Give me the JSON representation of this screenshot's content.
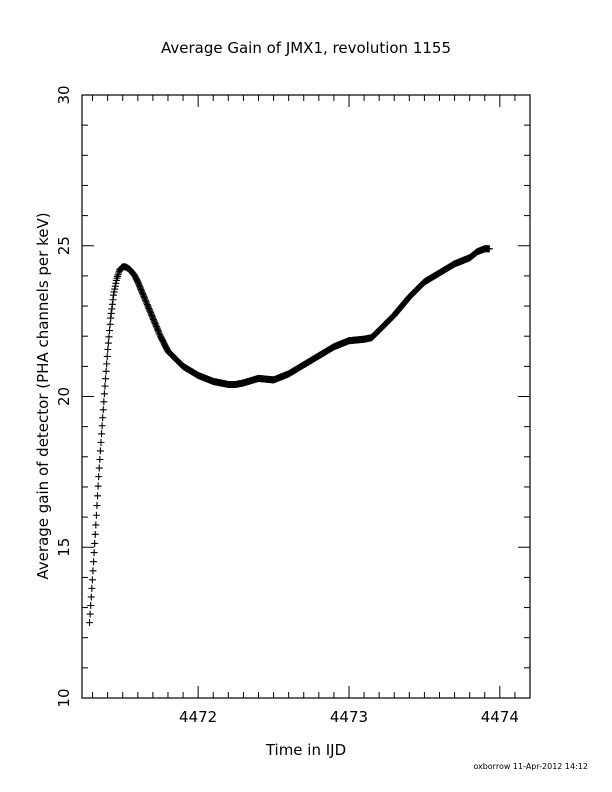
{
  "chart_data": {
    "type": "scatter",
    "title": "Average Gain of JMX1, revolution 1155",
    "xlabel": "Time in IJD",
    "ylabel": "Average gain of detector (PHA channels per keV)",
    "xlim": [
      4471.23,
      4474.2
    ],
    "ylim": [
      10,
      30
    ],
    "xticks": [
      4472,
      4473,
      4474
    ],
    "yticks": [
      10,
      15,
      20,
      25,
      30
    ],
    "marker": "plus",
    "grid": false,
    "footer": "oxborrow 11-Apr-2012 14:12",
    "series": [
      {
        "x": [
          4471.28,
          4471.3,
          4471.32,
          4471.34,
          4471.36,
          4471.38,
          4471.4,
          4471.42,
          4471.44,
          4471.46,
          4471.48,
          4471.5,
          4471.52,
          4471.55,
          4471.58,
          4471.6,
          4471.65,
          4471.7,
          4471.75,
          4471.8,
          4471.9,
          4472.0,
          4472.1,
          4472.2,
          4472.25,
          4472.3,
          4472.4,
          4472.5,
          4472.6,
          4472.7,
          4472.8,
          4472.9,
          4473.0,
          4473.1,
          4473.15,
          4473.2,
          4473.3,
          4473.4,
          4473.5,
          4473.6,
          4473.7,
          4473.8,
          4473.85,
          4473.9,
          4473.93
        ],
        "y": [
          12.5,
          14.0,
          15.6,
          17.3,
          18.8,
          20.2,
          21.5,
          22.6,
          23.4,
          23.9,
          24.2,
          24.3,
          24.3,
          24.2,
          24.0,
          23.8,
          23.2,
          22.6,
          22.0,
          21.5,
          21.0,
          20.7,
          20.5,
          20.4,
          20.4,
          20.45,
          20.6,
          20.55,
          20.75,
          21.05,
          21.35,
          21.65,
          21.85,
          21.9,
          21.95,
          22.2,
          22.7,
          23.3,
          23.8,
          24.1,
          24.4,
          24.6,
          24.8,
          24.9,
          24.9
        ]
      }
    ]
  }
}
